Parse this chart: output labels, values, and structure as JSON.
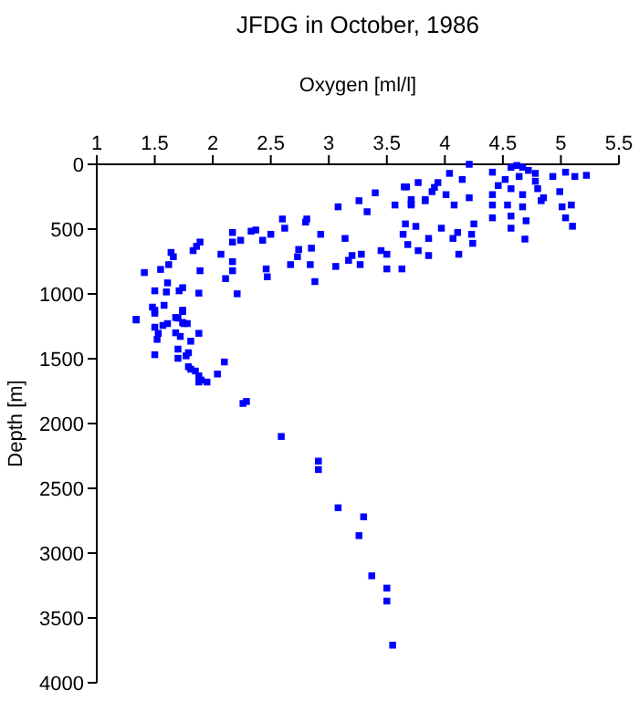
{
  "chart_data": {
    "type": "scatter",
    "title": "JFDG in October, 1986",
    "xlabel": "Oxygen [ml/l]",
    "ylabel": "Depth [m]",
    "xlim": [
      1,
      5.5
    ],
    "xticks": [
      1,
      1.5,
      2,
      2.5,
      3,
      3.5,
      4,
      4.5,
      5,
      5.5
    ],
    "ylim": [
      4000,
      0
    ],
    "yticks": [
      0,
      500,
      1000,
      1500,
      2000,
      2500,
      3000,
      3500,
      4000
    ],
    "marker": "square",
    "grid": false,
    "series": [
      {
        "color": "#0000ff",
        "x": [
          2.26,
          2.29,
          2.59,
          2.91,
          2.91,
          3.08,
          3.3,
          3.26,
          3.37,
          3.5,
          3.5,
          3.55,
          1.34,
          1.5,
          1.5,
          1.5,
          1.52,
          1.53,
          1.57,
          1.61,
          1.7,
          1.74,
          1.74,
          1.78,
          1.68,
          1.72,
          1.88,
          1.81,
          1.7,
          1.7,
          1.79,
          1.77,
          1.81,
          1.79,
          1.85,
          1.88,
          1.9,
          1.95,
          1.88,
          2.04,
          2.1,
          4.21,
          4.04,
          4.15,
          3.94,
          3.89,
          3.77,
          3.67,
          3.83,
          4.08,
          4.21,
          4.01,
          4.41,
          4.52,
          4.57,
          4.62,
          4.67,
          4.72,
          4.78,
          4.64,
          4.46,
          4.41,
          4.57,
          4.67,
          4.8,
          4.85,
          4.99,
          5.04,
          5.12,
          5.22,
          4.93,
          5.01,
          5.09,
          4.41,
          4.54,
          4.67,
          4.41,
          4.57,
          4.7,
          4.69,
          4.57,
          5.04,
          5.1,
          4.83,
          4.78,
          3.4,
          3.08,
          3.26,
          3.33,
          3.57,
          3.71,
          3.71,
          3.66,
          3.65,
          3.71,
          3.83,
          3.91,
          3.75,
          3.64,
          3.86,
          3.97,
          4.11,
          4.07,
          4.25,
          4.23,
          4.24,
          4.12,
          3.86,
          3.77,
          3.68,
          3.45,
          3.5,
          3.5,
          3.63,
          3.28,
          3.2,
          3.17,
          3.06,
          3.27,
          3.14,
          2.93,
          2.81,
          2.8,
          2.6,
          2.62,
          2.37,
          2.33,
          2.5,
          2.43,
          2.24,
          2.17,
          2.17,
          2.07,
          2.17,
          2.17,
          2.46,
          2.47,
          2.21,
          2.11,
          2.67,
          2.73,
          2.74,
          2.85,
          2.84,
          2.88,
          1.89,
          1.86,
          1.83,
          1.89,
          1.88,
          1.74,
          1.71,
          1.64,
          1.66,
          1.62,
          1.55,
          1.41,
          1.61,
          1.6,
          1.5,
          1.48,
          1.5,
          1.58,
          1.74,
          1.68,
          1.75,
          1.34
        ],
        "values": [
          1845,
          1830,
          2100,
          2290,
          2355,
          2650,
          2720,
          2865,
          3175,
          3270,
          3370,
          3710,
          1201,
          1126,
          1257,
          1469,
          1351,
          1304,
          1243,
          1229,
          1187,
          1136,
          1220,
          1229,
          1300,
          1328,
          1304,
          1365,
          1426,
          1497,
          1454,
          1478,
          1581,
          1562,
          1595,
          1633,
          1665,
          1680,
          1680,
          1618,
          1525,
          0,
          70,
          117,
          141,
          211,
          141,
          174,
          281,
          314,
          258,
          234,
          61,
          117,
          23,
          9,
          23,
          47,
          70,
          94,
          164,
          234,
          188,
          234,
          188,
          258,
          211,
          61,
          94,
          85,
          94,
          328,
          314,
          314,
          314,
          328,
          413,
          399,
          436,
          577,
          493,
          413,
          478,
          281,
          131,
          220,
          328,
          281,
          366,
          314,
          272,
          314,
          460,
          174,
          305,
          272,
          178,
          479,
          540,
          572,
          493,
          526,
          572,
          460,
          540,
          610,
          694,
          704,
          666,
          619,
          666,
          694,
          807,
          807,
          694,
          704,
          741,
          788,
          774,
          572,
          540,
          422,
          446,
          422,
          493,
          507,
          516,
          540,
          586,
          586,
          526,
          600,
          694,
          751,
          821,
          807,
          868,
          999,
          882,
          774,
          713,
          657,
          647,
          774,
          905,
          600,
          633,
          666,
          821,
          994,
          952,
          976,
          680,
          713,
          774,
          811,
          835,
          915,
          985,
          976,
          1102,
          1149,
          1088,
          1126,
          1182,
          1229,
          1196
        ]
      }
    ]
  }
}
